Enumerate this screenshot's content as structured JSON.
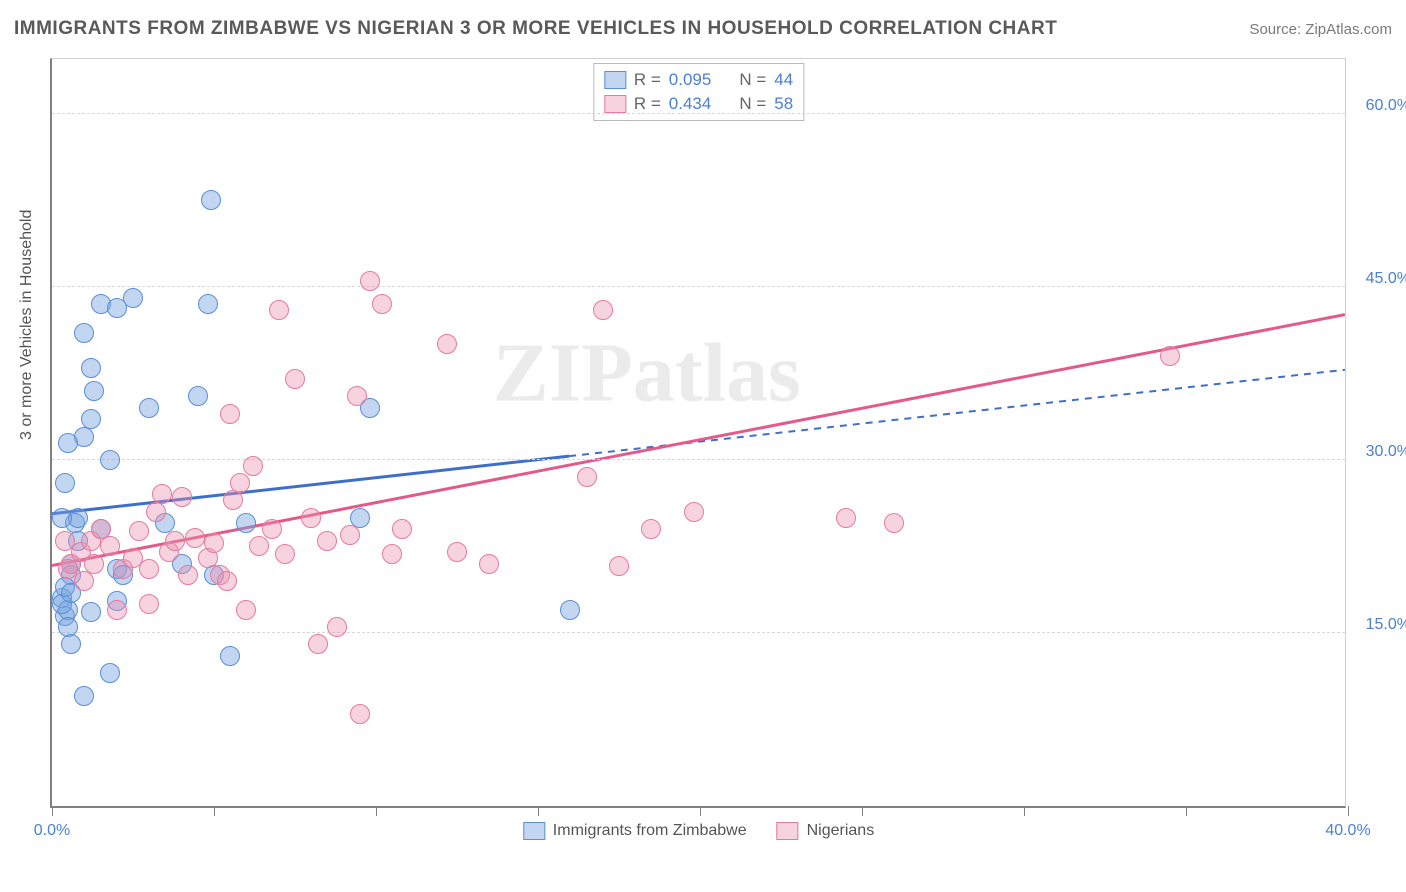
{
  "title": "IMMIGRANTS FROM ZIMBABWE VS NIGERIAN 3 OR MORE VEHICLES IN HOUSEHOLD CORRELATION CHART",
  "source": "Source: ZipAtlas.com",
  "ylabel": "3 or more Vehicles in Household",
  "watermark": "ZIPatlas",
  "chart": {
    "type": "scatter",
    "xlim": [
      0,
      40
    ],
    "ylim": [
      0,
      65
    ],
    "x_ticks": [
      0,
      5,
      10,
      15,
      20,
      25,
      30,
      35,
      40
    ],
    "x_tick_labels": {
      "0": "0.0%",
      "40": "40.0%"
    },
    "y_ticks": [
      15,
      30,
      45,
      60
    ],
    "y_tick_labels": {
      "15": "15.0%",
      "30": "30.0%",
      "45": "45.0%",
      "60": "60.0%"
    },
    "grid_color": "#d8d8d8",
    "background_color": "#ffffff",
    "marker_radius": 10,
    "series": [
      {
        "name": "Immigrants from Zimbabwe",
        "fill": "rgba(120,165,225,0.45)",
        "stroke": "#5a8fd8",
        "line_color": "#3d6fc8",
        "line_dash_tail": true,
        "R": "0.095",
        "N": "44",
        "trend": {
          "x1": 0,
          "y1": 25.5,
          "x2": 40,
          "y2": 38,
          "solid_until_x": 16
        },
        "points": [
          [
            0.3,
            18
          ],
          [
            0.4,
            16.5
          ],
          [
            0.5,
            17
          ],
          [
            0.6,
            21
          ],
          [
            0.7,
            24.5
          ],
          [
            0.8,
            25
          ],
          [
            0.6,
            20
          ],
          [
            1.0,
            32
          ],
          [
            1.2,
            33.5
          ],
          [
            1.3,
            36
          ],
          [
            1.0,
            41
          ],
          [
            1.5,
            43.5
          ],
          [
            2.0,
            43.2
          ],
          [
            1.2,
            38
          ],
          [
            2.5,
            44
          ],
          [
            4.8,
            43.5
          ],
          [
            4.9,
            52.5
          ],
          [
            1.8,
            30
          ],
          [
            1.5,
            24
          ],
          [
            2.0,
            20.5
          ],
          [
            2.2,
            20
          ],
          [
            0.3,
            17.5
          ],
          [
            0.4,
            19
          ],
          [
            0.6,
            18.5
          ],
          [
            0.8,
            23
          ],
          [
            1.8,
            11.5
          ],
          [
            1.0,
            9.5
          ],
          [
            5.5,
            13
          ],
          [
            2.0,
            17.8
          ],
          [
            1.2,
            16.8
          ],
          [
            3.0,
            34.5
          ],
          [
            4.5,
            35.5
          ],
          [
            4.0,
            21
          ],
          [
            3.5,
            24.5
          ],
          [
            5.0,
            20
          ],
          [
            6.0,
            24.5
          ],
          [
            9.8,
            34.5
          ],
          [
            9.5,
            25
          ],
          [
            16,
            17
          ],
          [
            0.5,
            31.5
          ],
          [
            0.3,
            25
          ],
          [
            0.4,
            28
          ],
          [
            0.5,
            15.5
          ],
          [
            0.6,
            14
          ]
        ]
      },
      {
        "name": "Nigerians",
        "fill": "rgba(235,145,175,0.4)",
        "stroke": "#e67aa0",
        "line_color": "#e35a8a",
        "line_dash_tail": false,
        "R": "0.434",
        "N": "58",
        "trend": {
          "x1": 0,
          "y1": 21,
          "x2": 40,
          "y2": 42.8
        },
        "points": [
          [
            0.6,
            21
          ],
          [
            0.9,
            22
          ],
          [
            1.2,
            23
          ],
          [
            1.5,
            24
          ],
          [
            1.8,
            22.5
          ],
          [
            2.2,
            20.5
          ],
          [
            2.5,
            21.5
          ],
          [
            2.7,
            23.8
          ],
          [
            3.0,
            17.5
          ],
          [
            3.2,
            25.5
          ],
          [
            3.4,
            27
          ],
          [
            3.6,
            22
          ],
          [
            3.8,
            23
          ],
          [
            4.0,
            26.8
          ],
          [
            4.4,
            23.2
          ],
          [
            4.8,
            21.5
          ],
          [
            5.2,
            20
          ],
          [
            5.4,
            19.5
          ],
          [
            5.6,
            26.5
          ],
          [
            5.8,
            28
          ],
          [
            6.0,
            17
          ],
          [
            6.4,
            22.5
          ],
          [
            6.8,
            24
          ],
          [
            7.2,
            21.8
          ],
          [
            7.5,
            37
          ],
          [
            6.2,
            29.5
          ],
          [
            7.0,
            43
          ],
          [
            8.0,
            25
          ],
          [
            8.5,
            23
          ],
          [
            8.8,
            15.5
          ],
          [
            8.2,
            14
          ],
          [
            9.4,
            35.5
          ],
          [
            9.8,
            45.5
          ],
          [
            10.2,
            43.5
          ],
          [
            10.5,
            21.8
          ],
          [
            10.8,
            24
          ],
          [
            5.5,
            34
          ],
          [
            12.5,
            22
          ],
          [
            12.2,
            40
          ],
          [
            13.5,
            21
          ],
          [
            16.5,
            28.5
          ],
          [
            17.0,
            43
          ],
          [
            17.5,
            20.8
          ],
          [
            18.5,
            24
          ],
          [
            19.8,
            25.5
          ],
          [
            9.2,
            23.5
          ],
          [
            24.5,
            25
          ],
          [
            26,
            24.5
          ],
          [
            34.5,
            39
          ],
          [
            9.5,
            8
          ],
          [
            2.0,
            17
          ],
          [
            1.0,
            19.5
          ],
          [
            0.5,
            20.5
          ],
          [
            0.4,
            23
          ],
          [
            1.3,
            21
          ],
          [
            4.2,
            20
          ],
          [
            5.0,
            22.8
          ],
          [
            3.0,
            20.5
          ]
        ]
      }
    ]
  },
  "legend_bottom": [
    {
      "label": "Immigrants from Zimbabwe",
      "swatch_fill": "rgba(120,165,225,0.45)",
      "swatch_stroke": "#5a8fd8"
    },
    {
      "label": "Nigerians",
      "swatch_fill": "rgba(235,145,175,0.4)",
      "swatch_stroke": "#e67aa0"
    }
  ]
}
